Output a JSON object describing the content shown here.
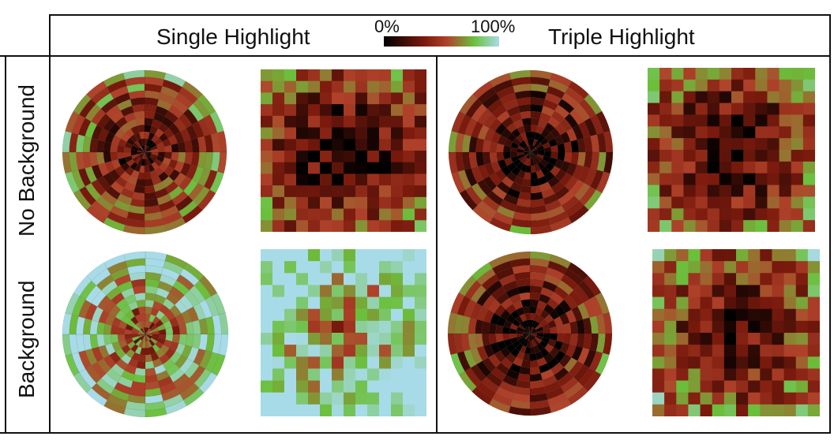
{
  "headers": {
    "single": "Single Highlight",
    "triple": "Triple Highlight",
    "no_background": "No Background",
    "background": "Background"
  },
  "legend": {
    "min_label": "0%",
    "max_label": "100%",
    "colors": [
      "#000000",
      "#7a1a0d",
      "#b0422a",
      "#6bbf3b",
      "#a8dbe8"
    ]
  },
  "chart_data": [
    {
      "type": "heatmap",
      "layout": "radial",
      "condition": "Single Highlight",
      "row": "No Background",
      "mean_accuracy": 0.45,
      "rings": 12,
      "sectors": 24
    },
    {
      "type": "heatmap",
      "layout": "grid",
      "condition": "Single Highlight",
      "row": "No Background",
      "mean_accuracy": 0.3,
      "size": 14
    },
    {
      "type": "heatmap",
      "layout": "radial",
      "condition": "Triple Highlight",
      "row": "No Background",
      "mean_accuracy": 0.3,
      "rings": 12,
      "sectors": 24
    },
    {
      "type": "heatmap",
      "layout": "grid",
      "condition": "Triple Highlight",
      "row": "No Background",
      "mean_accuracy": 0.35,
      "size": 14
    },
    {
      "type": "heatmap",
      "layout": "radial",
      "condition": "Single Highlight",
      "row": "Background",
      "mean_accuracy": 0.75,
      "rings": 12,
      "sectors": 24
    },
    {
      "type": "heatmap",
      "layout": "grid",
      "condition": "Single Highlight",
      "row": "Background",
      "mean_accuracy": 0.82,
      "size": 14
    },
    {
      "type": "heatmap",
      "layout": "radial",
      "condition": "Triple Highlight",
      "row": "Background",
      "mean_accuracy": 0.32,
      "rings": 12,
      "sectors": 24
    },
    {
      "type": "heatmap",
      "layout": "grid",
      "condition": "Triple Highlight",
      "row": "Background",
      "mean_accuracy": 0.4,
      "size": 14
    }
  ]
}
